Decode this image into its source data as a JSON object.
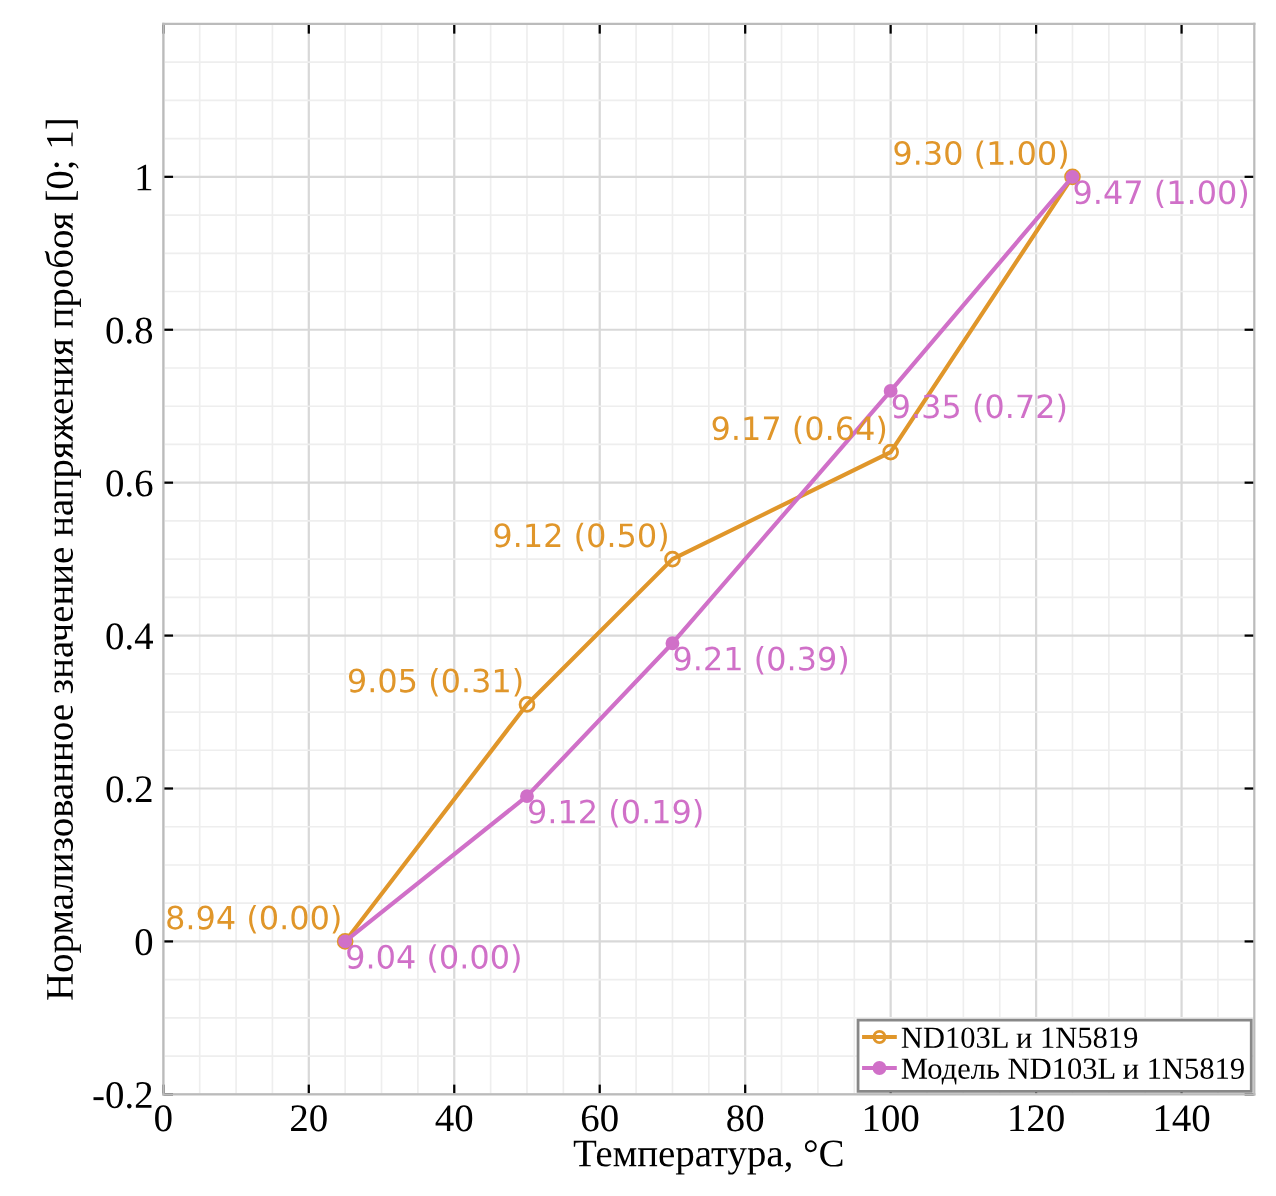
{
  "chart_data": {
    "type": "line",
    "xlabel": "Температура, °C",
    "ylabel": "Нормализованное значение напряжения пробоя [0; 1]",
    "x": [
      25,
      50,
      70,
      100,
      125
    ],
    "series": [
      {
        "name": "ND103L и 1N5819",
        "color": "#e0962a",
        "marker": "circle",
        "values": [
          0.0,
          0.31,
          0.5,
          0.64,
          1.0
        ],
        "value_labels": [
          "8.94 (0.00)",
          "9.05 (0.31)",
          "9.12 (0.50)",
          "9.17 (0.64)",
          "9.30 (1.00)"
        ]
      },
      {
        "name": "Модель ND103L и 1N5819",
        "color": "#d070c8",
        "marker": "circle",
        "values": [
          0.0,
          0.19,
          0.39,
          0.72,
          1.0
        ],
        "value_labels": [
          "9.04 (0.00)",
          "9.12 (0.19)",
          "9.21 (0.39)",
          "9.35 (0.72)",
          "9.47 (1.00)"
        ]
      }
    ],
    "xlim": [
      0,
      150
    ],
    "ylim": [
      -0.2,
      1.2
    ],
    "xticks": [
      0,
      20,
      40,
      60,
      80,
      100,
      120,
      140
    ],
    "yticks": [
      -0.2,
      0,
      0.2,
      0.4,
      0.6,
      0.8,
      1
    ],
    "grid": true,
    "legend": "bottom right"
  }
}
